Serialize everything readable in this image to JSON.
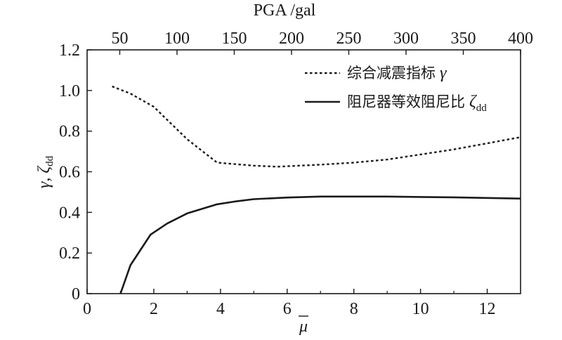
{
  "chart_data": {
    "type": "line",
    "xlabel": "μ",
    "ylabel": "γ, ζ",
    "ylabel_sub": "dd",
    "x2label": "PGA /gal",
    "xlim": [
      0,
      13
    ],
    "ylim": [
      0,
      1.2
    ],
    "x2lim": [
      21.5,
      400
    ],
    "x_ticks": [
      0,
      2,
      4,
      6,
      8,
      10,
      12
    ],
    "x_tick_labels": [
      "0",
      "2",
      "4",
      "6",
      "8",
      "10",
      "12"
    ],
    "y_ticks": [
      0,
      0.2,
      0.4,
      0.6,
      0.8,
      1.0,
      1.2
    ],
    "y_tick_labels": [
      "0",
      "0.2",
      "0.4",
      "0.6",
      "0.8",
      "1.0",
      "1.2"
    ],
    "x2_ticks": [
      50,
      100,
      150,
      200,
      250,
      300,
      350,
      400
    ],
    "x2_tick_labels": [
      "50",
      "100",
      "150",
      "200",
      "250",
      "300",
      "350",
      "400"
    ],
    "grid": false,
    "legend_position": "top-right",
    "series": [
      {
        "name": "综合减震指标 γ",
        "name_text": "综合减震指标",
        "name_symbol": "γ",
        "style": "dotted",
        "color": "#1a1a1a",
        "x": [
          0.75,
          1.3,
          2.0,
          3.0,
          3.9,
          5.0,
          5.7,
          7.0,
          8.0,
          9.0,
          10.0,
          11.0,
          12.0,
          13.0
        ],
        "y": [
          1.02,
          0.985,
          0.92,
          0.76,
          0.645,
          0.63,
          0.625,
          0.635,
          0.645,
          0.66,
          0.685,
          0.71,
          0.74,
          0.77
        ]
      },
      {
        "name": "阻尼器等效阻尼比 ζdd",
        "name_text": "阻尼器等效阻尼比",
        "name_symbol": "ζ",
        "name_sub": "dd",
        "style": "solid",
        "color": "#1a1a1a",
        "x": [
          1.0,
          1.3,
          1.9,
          2.4,
          3.0,
          3.9,
          4.5,
          5.0,
          6.0,
          7.0,
          8.0,
          9.0,
          10.0,
          11.0,
          12.0,
          13.0
        ],
        "y": [
          0.0,
          0.14,
          0.29,
          0.345,
          0.395,
          0.44,
          0.455,
          0.465,
          0.473,
          0.478,
          0.478,
          0.478,
          0.476,
          0.474,
          0.471,
          0.468
        ]
      }
    ]
  }
}
